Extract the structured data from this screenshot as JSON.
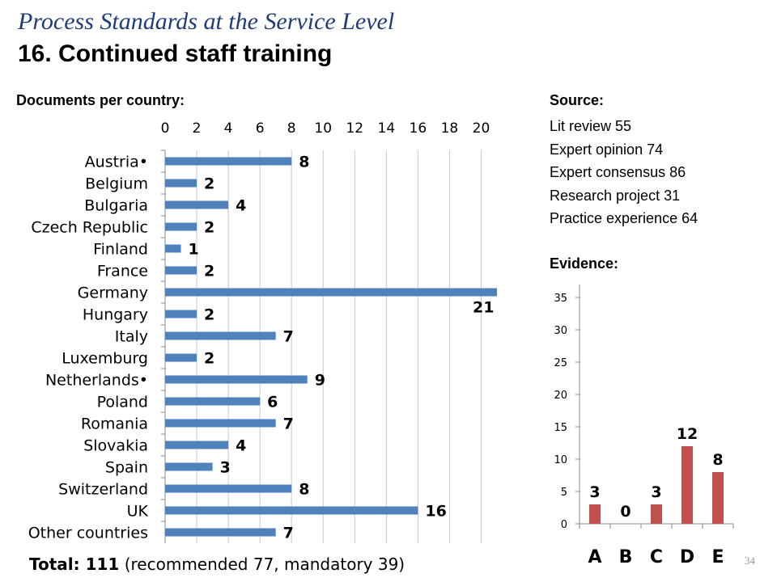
{
  "header": {
    "title": "Process Standards at the Service Level",
    "subtitle": "16. Continued staff training"
  },
  "documents_label": "Documents per country:",
  "source": {
    "label": "Source:",
    "items": [
      "Lit review 55",
      "Expert opinion 74",
      "Expert consensus 86",
      "Research project 31",
      "Practice experience 64"
    ]
  },
  "evidence_label": "Evidence:",
  "footer": {
    "total_label": "Total: 111",
    "total_detail": " (recommended 77, mandatory 39)",
    "page_number": "34"
  },
  "colors": {
    "bar_blue": "#4f81bd",
    "bar_red": "#c0504d",
    "title_blue": "#1f3c78"
  },
  "chart_data": [
    {
      "type": "bar",
      "orientation": "horizontal",
      "categories": [
        "Austria•",
        "Belgium",
        "Bulgaria",
        "Czech Republic",
        "Finland",
        "France",
        "Germany",
        "Hungary",
        "Italy",
        "Luxemburg",
        "Netherlands•",
        "Poland",
        "Romania",
        "Slovakia",
        "Spain",
        "Switzerland",
        "UK",
        "Other countries"
      ],
      "values": [
        8,
        2,
        4,
        2,
        1,
        2,
        21,
        2,
        7,
        2,
        9,
        6,
        7,
        4,
        3,
        8,
        16,
        7
      ],
      "xticks": [
        0,
        2,
        4,
        6,
        8,
        10,
        12,
        14,
        16,
        18,
        20
      ],
      "xlim": [
        0,
        21
      ],
      "grid": true,
      "axis_position": "top"
    },
    {
      "type": "bar",
      "categories": [
        "A",
        "B",
        "C",
        "D",
        "E"
      ],
      "values": [
        3,
        0,
        3,
        12,
        8
      ],
      "yticks": [
        0,
        5,
        10,
        15,
        20,
        25,
        30,
        35
      ],
      "ylim": [
        0,
        35
      ],
      "grid": false
    }
  ]
}
